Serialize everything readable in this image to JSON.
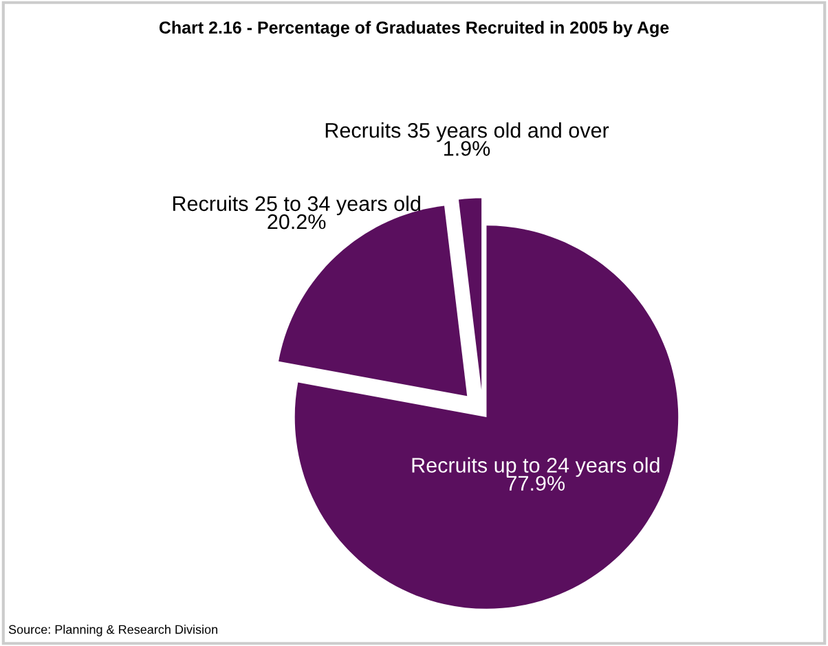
{
  "chart_data": {
    "type": "pie",
    "title": "Chart 2.16 - Percentage of Graduates Recruited in 2005 by Age",
    "categories": [
      "Recruits up to 24 years old",
      "Recruits 25 to 34 years old",
      "Recruits 35 years old and over"
    ],
    "values": [
      77.9,
      20.2,
      1.9
    ],
    "colors": [
      "#5a0f5e",
      "#5a0f5e",
      "#5a0f5e"
    ],
    "annotations": [
      "Source: Planning & Research Division"
    ],
    "value_labels": [
      "77.9%",
      "20.2%",
      "1.9%"
    ],
    "legend": false
  }
}
